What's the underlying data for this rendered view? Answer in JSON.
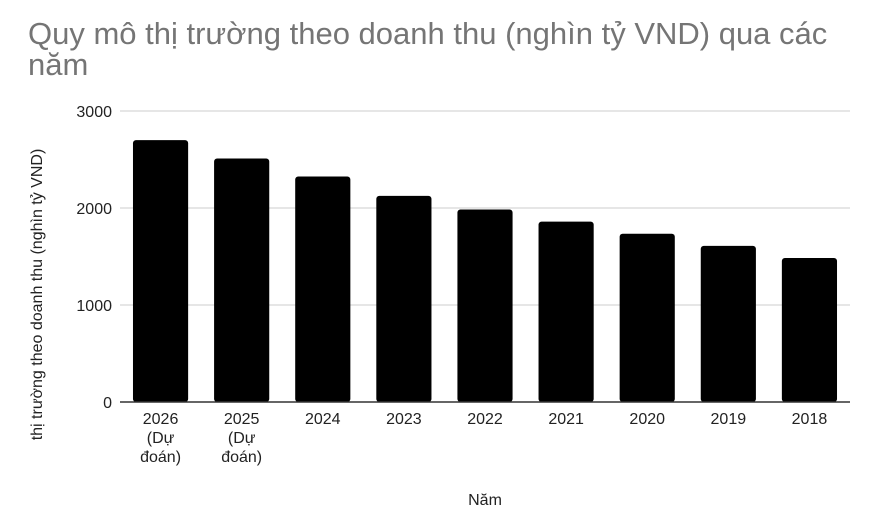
{
  "chart_data": {
    "type": "bar",
    "title": "Quy mô thị trường theo doanh thu (nghìn tỷ VND) qua các năm",
    "xlabel": "Năm",
    "ylabel": "thị trường theo doanh thu (nghìn tỷ VND)",
    "categories": [
      "2026 (Dự đoán)",
      "2025 (Dự đoán)",
      "2024",
      "2023",
      "2022",
      "2021",
      "2020",
      "2019",
      "2018"
    ],
    "category_lines": [
      [
        "2026",
        "(Dự",
        "đoán)"
      ],
      [
        "2025",
        "(Dự",
        "đoán)"
      ],
      [
        "2024"
      ],
      [
        "2023"
      ],
      [
        "2022"
      ],
      [
        "2021"
      ],
      [
        "2020"
      ],
      [
        "2019"
      ],
      [
        "2018"
      ]
    ],
    "values": [
      2700,
      2510,
      2325,
      2125,
      1985,
      1860,
      1735,
      1610,
      1485
    ],
    "ylim": [
      0,
      3000
    ],
    "yticks": [
      "0",
      "1000",
      "2000",
      "3000"
    ],
    "grid": true,
    "bar_color": "#000000"
  }
}
